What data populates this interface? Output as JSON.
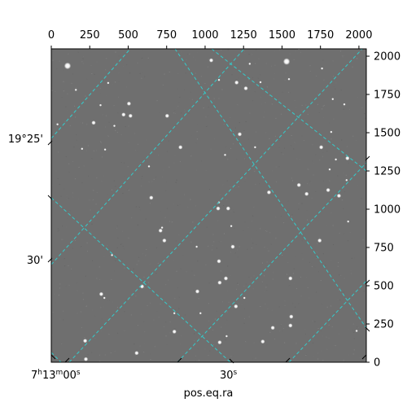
{
  "figure": {
    "x_label": "pos.eq.ra",
    "ra_tick_labels": [
      {
        "h": "7",
        "h_unit": "h",
        "m": "13",
        "m_unit": "m",
        "s": "00",
        "s_unit": "s"
      },
      {
        "s": "30",
        "s_unit": "s"
      }
    ],
    "dec_tick_labels": [
      "19°25'",
      "30'"
    ],
    "grid_color": "#33cccc",
    "image_background": "#6f6f6f"
  },
  "chart_data": {
    "type": "scatter",
    "title": "",
    "xlabel": "pos.eq.ra",
    "ylabel": "",
    "pixel_axes": {
      "x_ticks": [
        0,
        250,
        500,
        750,
        1000,
        1250,
        1500,
        1750,
        2000
      ],
      "y_ticks": [
        0,
        250,
        500,
        750,
        1000,
        1250,
        1500,
        1750,
        2000
      ],
      "xlim": [
        0,
        2048
      ],
      "ylim": [
        0,
        2048
      ]
    },
    "world_axes": {
      "ra_ticks": [
        "7h13m00s",
        "30s"
      ],
      "dec_ticks": [
        "19°25'",
        "30'"
      ]
    },
    "grid": true,
    "stars": {
      "x": [
        106,
        1040,
        1530,
        1205,
        1265,
        505,
        470,
        753,
        515,
        275,
        1225,
        840,
        1755,
        1925,
        1610,
        1800,
        1660,
        1415,
        1870,
        1085,
        1150,
        650,
        735,
        710,
        1745,
        1180,
        1090,
        1135,
        1555,
        1095,
        590,
        950,
        325,
        1200,
        1560,
        1555,
        1440,
        800,
        1095,
        220,
        1375,
        225,
        555,
        1090,
        1545,
        160,
        320,
        410,
        200,
        1325,
        1830,
        370,
        1610,
        40,
        350,
        1810,
        1930,
        1170,
        945,
        395,
        345,
        970,
        1255,
        800,
        1090,
        635,
        1985,
        1130,
        1290,
        1920,
        1820,
        1360,
        1905,
        720,
        1760,
        1850,
        1140
      ],
      "y": [
        1937,
        1973,
        1965,
        1828,
        1790,
        1690,
        1618,
        1610,
        1610,
        1565,
        1490,
        1405,
        1405,
        1333,
        1158,
        1125,
        1100,
        1110,
        1088,
        1005,
        1005,
        1075,
        795,
        860,
        795,
        755,
        660,
        548,
        548,
        520,
        495,
        463,
        445,
        365,
        298,
        240,
        225,
        200,
        130,
        140,
        135,
        20,
        60,
        1845,
        1850,
        1780,
        1680,
        1545,
        1395,
        1405,
        1720,
        1825,
        2050,
        1555,
        1390,
        1260,
        920,
        890,
        755,
        700,
        420,
        320,
        420,
        320,
        1045,
        1280,
        205,
        1355,
        1950,
        1190,
        1505,
        1830,
        1685,
        880,
        1920,
        1325,
        170
      ],
      "brightness": [
        5,
        3,
        5,
        3,
        3,
        3,
        3,
        3,
        3,
        3,
        3,
        3,
        3,
        3,
        3,
        3,
        3,
        3,
        3,
        3,
        3,
        3,
        3,
        3,
        3,
        3,
        3,
        3,
        3,
        3,
        3,
        3,
        3,
        3,
        3,
        3,
        3,
        3,
        3,
        3,
        3,
        3,
        3,
        2,
        2,
        2,
        2,
        2,
        2,
        2,
        2,
        2,
        2,
        2,
        2,
        2,
        2,
        2,
        2,
        2,
        2,
        2,
        2,
        2,
        2,
        2,
        2,
        2,
        2,
        2,
        2,
        2,
        2,
        2,
        2,
        2,
        2
      ]
    }
  }
}
